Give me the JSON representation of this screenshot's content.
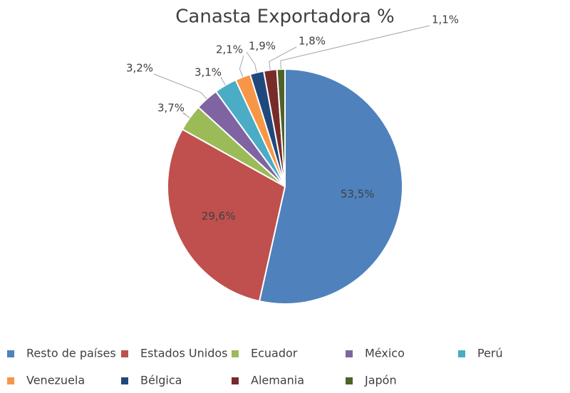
{
  "chart_data": {
    "type": "pie",
    "title": "Canasta Exportadora %",
    "categories": [
      "Resto de países",
      "Estados Unidos",
      "Ecuador",
      "México",
      "Perú",
      "Venezuela",
      "Bélgica",
      "Alemania",
      "Japón"
    ],
    "values": [
      53.5,
      29.6,
      3.7,
      3.2,
      3.1,
      2.1,
      1.9,
      1.8,
      1.1
    ],
    "value_labels": [
      "53,5%",
      "29,6%",
      "3,7%",
      "3,2%",
      "3,1%",
      "2,1%",
      "1,9%",
      "1,8%",
      "1,1%"
    ],
    "colors": [
      "#4f81bd",
      "#c0504d",
      "#9bbb59",
      "#8064a2",
      "#4bacc6",
      "#f79646",
      "#1f497d",
      "#772c2a",
      "#4f6228"
    ],
    "legend": "bottom"
  }
}
